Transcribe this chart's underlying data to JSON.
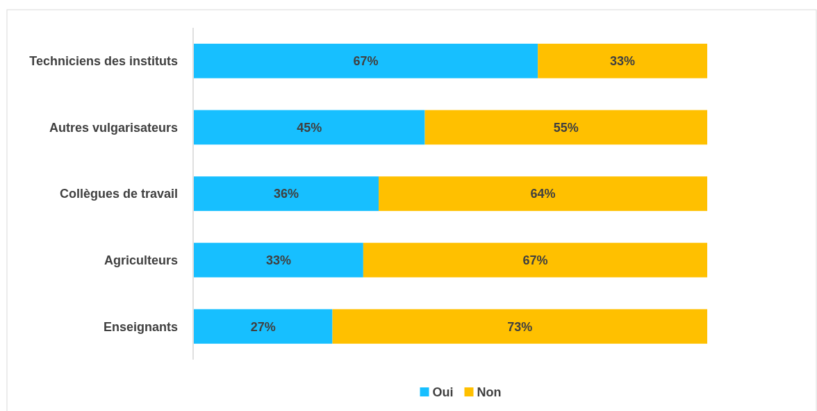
{
  "chart_data": {
    "type": "bar",
    "orientation": "horizontal",
    "stacked": true,
    "categories": [
      "Techniciens des instituts",
      "Autres vulgarisateurs",
      "Collègues de travail",
      "Agriculteurs",
      "Enseignants"
    ],
    "series": [
      {
        "name": "Oui",
        "color": "#17bfff",
        "values": [
          67,
          45,
          36,
          33,
          27
        ],
        "value_labels": [
          "67%",
          "45%",
          "36%",
          "33%",
          "27%"
        ]
      },
      {
        "name": "Non",
        "color": "#ffc000",
        "values": [
          33,
          55,
          64,
          67,
          73
        ],
        "value_labels": [
          "33%",
          "55%",
          "64%",
          "67%",
          "73%"
        ]
      }
    ],
    "xlim": [
      0,
      100
    ],
    "tick_labels": "y",
    "legend": "bottom"
  }
}
